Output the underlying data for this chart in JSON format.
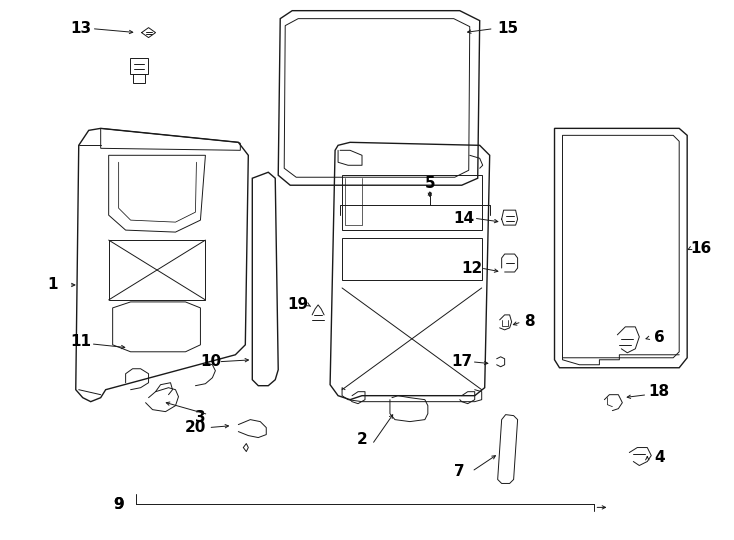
{
  "background_color": "#ffffff",
  "fig_width": 7.34,
  "fig_height": 5.4,
  "dpi": 100,
  "lc": "#1a1a1a",
  "lw_main": 1.0,
  "lw_thin": 0.7,
  "lw_label": 0.7,
  "label_fontsize": 11,
  "label_fontsize_sm": 10
}
